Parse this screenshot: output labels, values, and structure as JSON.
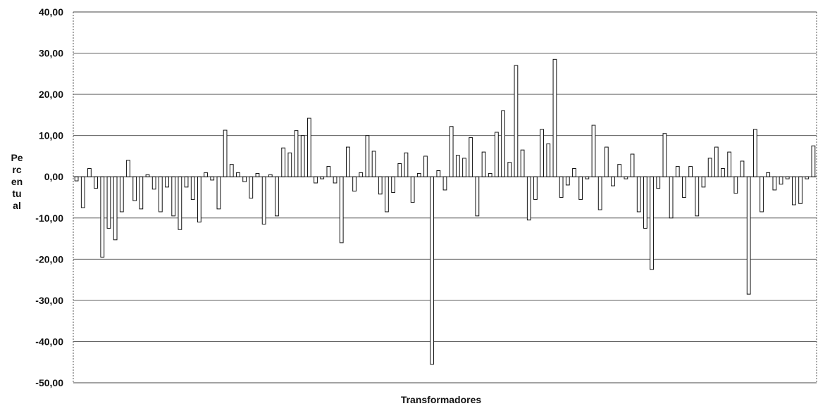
{
  "chart_data": {
    "type": "bar",
    "xlabel": "Transformadores",
    "ylabel_lines": [
      "Pe",
      "rc",
      "en",
      "tu",
      "al"
    ],
    "ylim": [
      -50,
      40
    ],
    "yticks": [
      40,
      30,
      20,
      10,
      0,
      -10,
      -20,
      -30,
      -40,
      -50
    ],
    "ytick_labels": [
      "40,00",
      "30,00",
      "20,00",
      "10,00",
      "0,00",
      "-10,00",
      "-20,00",
      "-30,00",
      "-40,00",
      "-50,00"
    ],
    "grid": "horizontal",
    "legend": "none",
    "bar_fill": "#ffffff",
    "bar_stroke": "#111111",
    "series": [
      {
        "values": [
          -1,
          -7.5,
          2,
          -2.8,
          -19.5,
          -12.5,
          -15.3,
          -8.5,
          4,
          -5.8,
          -7.8,
          0.5,
          -3,
          -8.5,
          -2.5,
          -9.5,
          -12.8,
          -2.5,
          -5.5,
          -11,
          1,
          -0.8,
          -7.8,
          11.3,
          3,
          1,
          -1.2,
          -5.2,
          0.8,
          -11.5,
          0.5,
          -9.5,
          7,
          5.8,
          11.2,
          10,
          14.2,
          -1.5,
          -0.5,
          2.5,
          -1.5,
          -16,
          7.2,
          -3.5,
          1,
          10,
          6.2,
          -4.2,
          -8.5,
          -3.8,
          3.2,
          5.8,
          -6.2,
          0.8,
          5,
          -45.5,
          1.5,
          -3.2,
          12.2,
          5.2,
          4.5,
          9.5,
          -9.5,
          6,
          0.8,
          10.8,
          16,
          3.5,
          27,
          6.5,
          -10.5,
          -5.5,
          11.5,
          8,
          28.5,
          -5,
          -2,
          2,
          -5.5,
          -0.5,
          12.5,
          -8,
          7.2,
          -2.2,
          3,
          -0.5,
          5.5,
          -8.5,
          -12.5,
          -22.5,
          -2.8,
          10.5,
          -10,
          2.5,
          -5,
          2.5,
          -9.5,
          -2.5,
          4.5,
          7.2,
          2,
          6,
          -4,
          3.8,
          -28.5,
          11.5,
          -8.5,
          1,
          -3.2,
          -1.8,
          -0.5,
          -6.8,
          -6.5,
          -0.5,
          7.5
        ]
      }
    ]
  }
}
